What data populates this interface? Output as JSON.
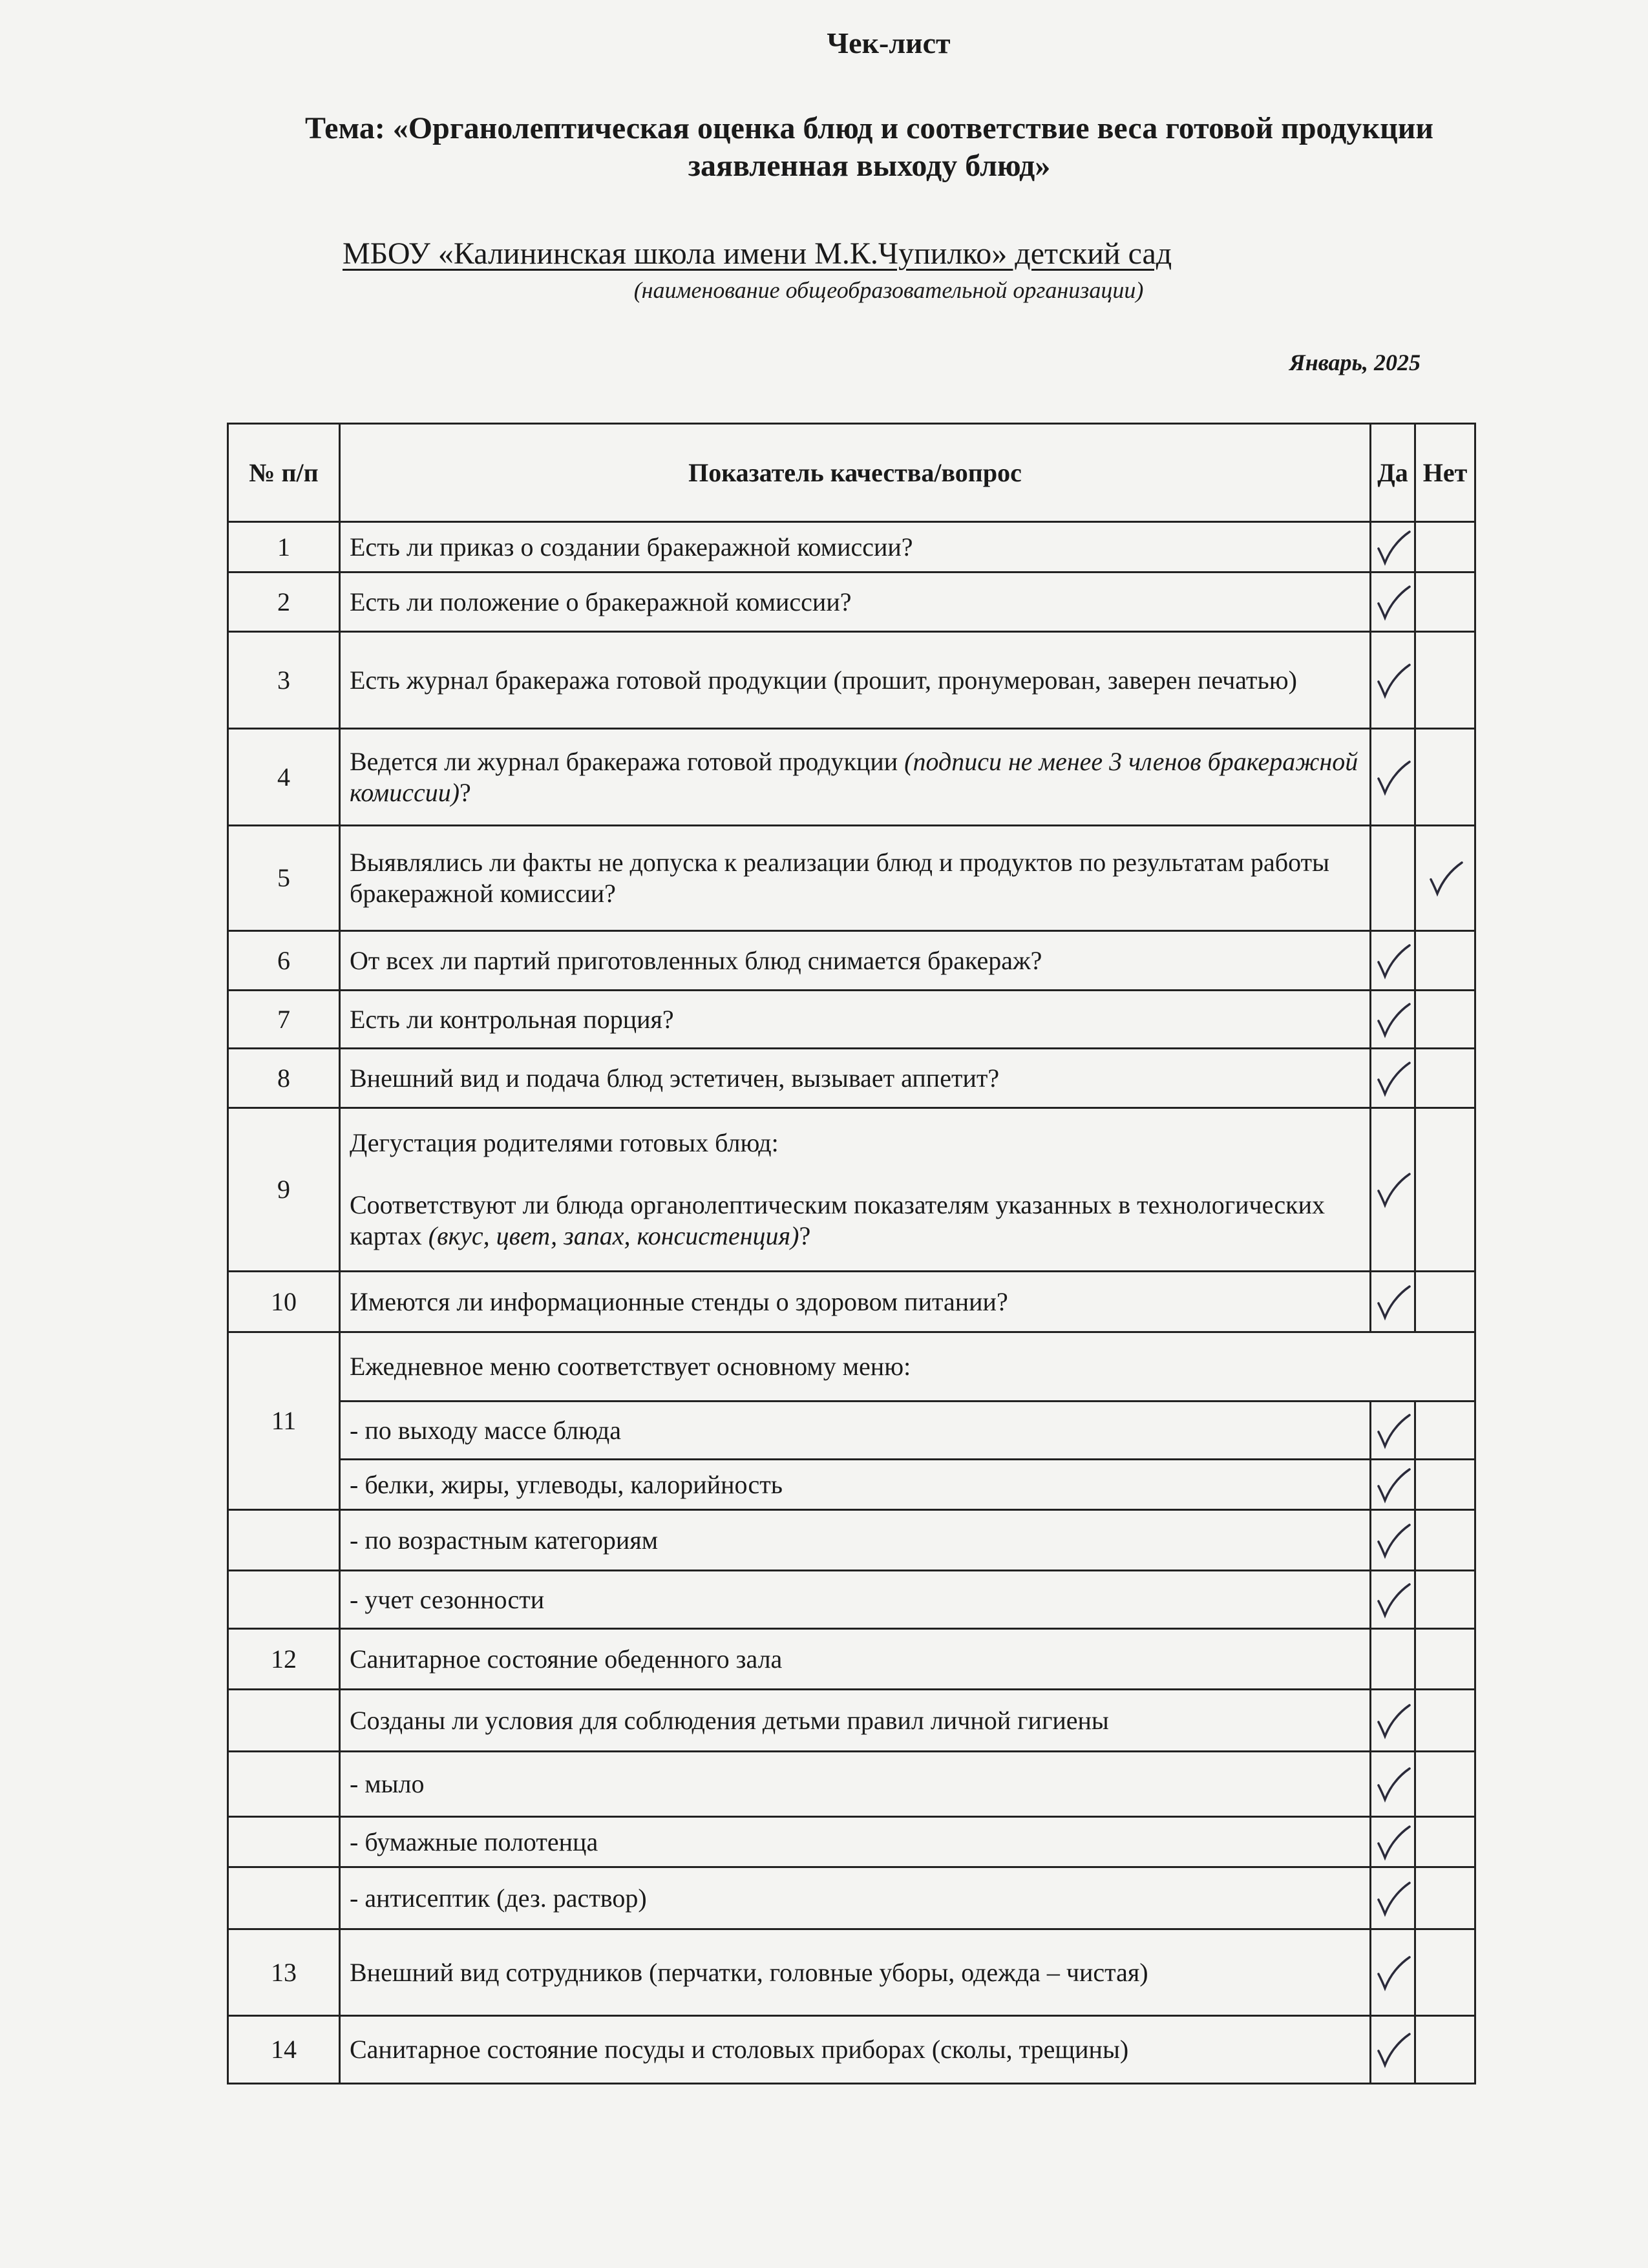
{
  "document": {
    "title": "Чек-лист",
    "topic": "Тема: «Органолептическая оценка блюд и соответствие веса готовой продукции заявленная выходу блюд»",
    "organization": "МБОУ «Калининская школа имени М.К.Чупилко» детский сад",
    "organization_hint": "(наименование общеобразовательной организации)",
    "date": "Январь, 2025"
  },
  "table": {
    "headers": {
      "num": "№ п/п",
      "question": "Показатель качества/вопрос",
      "yes": "Да",
      "no": "Нет"
    },
    "check_icon": "handwritten-check-icon",
    "rows": [
      {
        "num": "1",
        "text": "Есть ли приказ о создании бракеражной комиссии?",
        "yes": true,
        "no": false
      },
      {
        "num": "2",
        "text": "Есть ли положение о бракеражной комиссии?",
        "yes": true,
        "no": false
      },
      {
        "num": "3",
        "text": "Есть журнал бракеража готовой продукции (прошит, пронумерован, заверен печатью)",
        "yes": true,
        "no": false
      },
      {
        "num": "4",
        "text": "Ведется ли журнал бракеража готовой продукции ",
        "italic": "(подписи не менее 3 членов бракеражной комиссии)",
        "suffix": "?",
        "yes": true,
        "no": false
      },
      {
        "num": "5",
        "text": "Выявлялись ли факты не допуска к реализации блюд и продуктов по результатам работы бракеражной комиссии?",
        "yes": false,
        "no": true
      },
      {
        "num": "6",
        "text": "От всех ли партий приготовленных блюд снимается бракераж?",
        "yes": true,
        "no": false
      },
      {
        "num": "7",
        "text": "Есть ли контрольная порция?",
        "yes": true,
        "no": false
      },
      {
        "num": "8",
        "text": "Внешний вид и подача блюд эстетичен, вызывает аппетит?",
        "yes": true,
        "no": false
      },
      {
        "num": "9",
        "pre": "Дегустация родителями готовых блюд:",
        "text": "Соответствуют ли блюда органолептическим показателям указанных в технологических картах ",
        "italic": "(вкус, цвет, запах, консистенция)",
        "suffix": "?",
        "yes": true,
        "no": false
      },
      {
        "num": "10",
        "text": "Имеются ли информационные стенды о здоровом питании?",
        "yes": true,
        "no": false
      },
      {
        "num": "11",
        "text": "Ежедневное меню соответствует основному меню:",
        "header": true
      },
      {
        "num": "",
        "text": "- по выходу массе блюда",
        "yes": true,
        "no": false,
        "spanned": true
      },
      {
        "num": "",
        "text": "- белки, жиры, углеводы, калорийность",
        "yes": true,
        "no": false,
        "spanned": true
      },
      {
        "num": "",
        "text": "- по возрастным категориям",
        "yes": true,
        "no": false
      },
      {
        "num": "",
        "text": "- учет сезонности",
        "yes": true,
        "no": false
      },
      {
        "num": "12",
        "text": "Санитарное состояние обеденного зала",
        "yes": false,
        "no": false
      },
      {
        "num": "",
        "text": "Созданы ли условия для соблюдения детьми правил личной гигиены",
        "yes": true,
        "no": false
      },
      {
        "num": "",
        "text": "- мыло",
        "yes": true,
        "no": false
      },
      {
        "num": "",
        "text": "- бумажные полотенца",
        "yes": true,
        "no": false
      },
      {
        "num": "",
        "text": "- антисептик (дез. раствор)",
        "yes": true,
        "no": false
      },
      {
        "num": "13",
        "text": "Внешний вид сотрудников (перчатки, головные уборы, одежда – чистая)",
        "yes": true,
        "no": false
      },
      {
        "num": "14",
        "text": "Санитарное состояние посуды и столовых приборах (сколы, трещины)",
        "yes": true,
        "no": false
      }
    ]
  }
}
